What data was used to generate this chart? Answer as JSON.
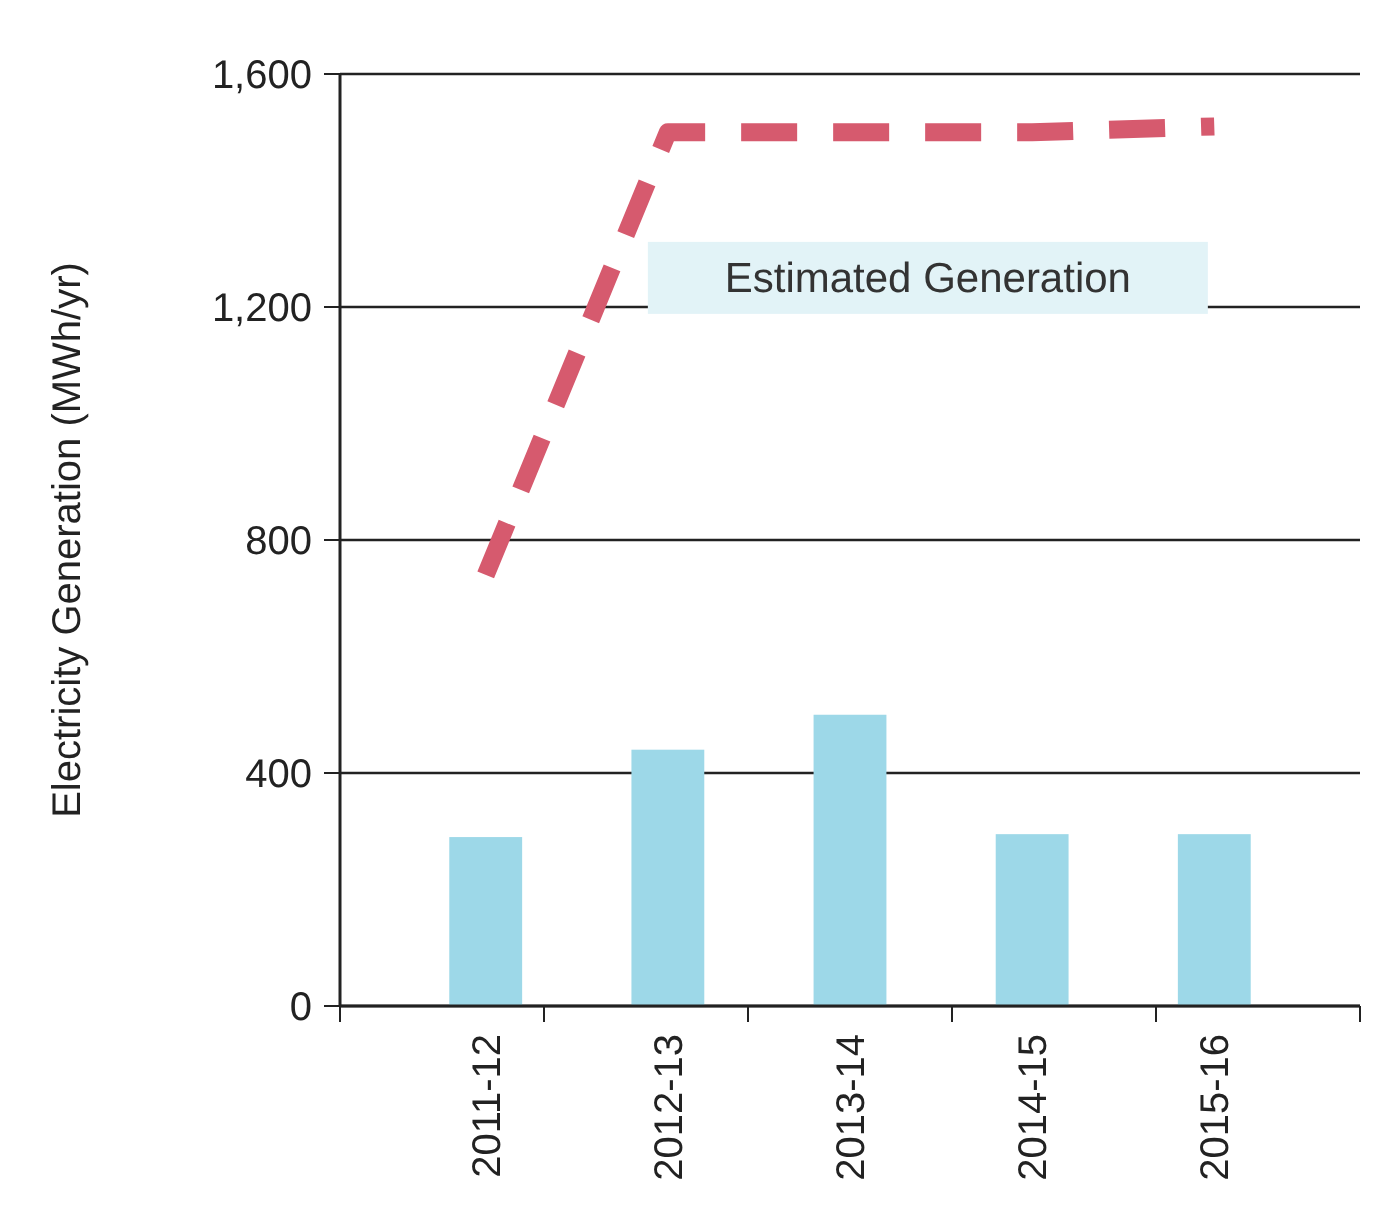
{
  "chart_data": {
    "type": "bar",
    "ylabel": "Electricity Generation (MWh/yr)",
    "categories": [
      "2011-12",
      "2012-13",
      "2013-14",
      "2014-15",
      "2015-16"
    ],
    "series": [
      {
        "color": "#9dd8e8",
        "values": [
          290,
          440,
          500,
          295,
          295
        ]
      },
      {
        "type": "line",
        "name": "Estimated Generation",
        "color": "#d65a6e",
        "line_style": "dashed",
        "values": [
          740,
          1500,
          1500,
          1500,
          1510
        ]
      }
    ],
    "ylim": [
      0,
      1600
    ],
    "yticks": [
      0,
      {
        "value": 400,
        "label": "400"
      },
      {
        "value": 800,
        "label": "800"
      },
      {
        "value": 1200,
        "label": "1,200"
      },
      {
        "value": 1600,
        "label": "1,600"
      }
    ],
    "grid": "y"
  }
}
